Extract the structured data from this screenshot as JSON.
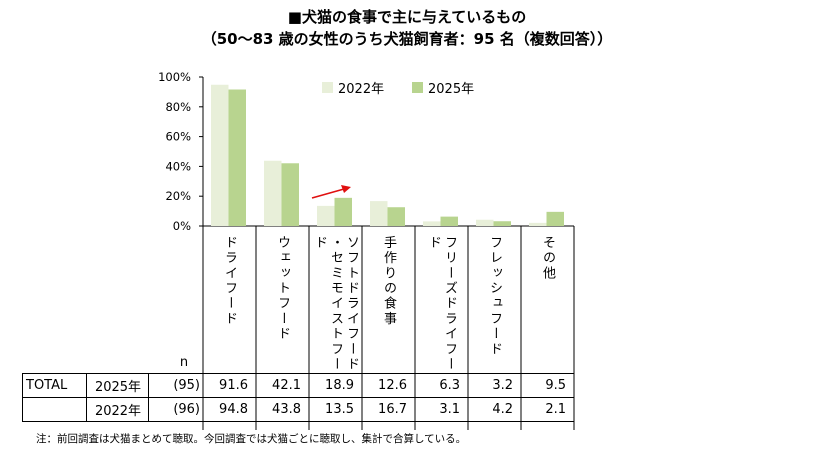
{
  "title": "■犬猫の食事で主に与えているもの",
  "subtitle": "（50～83 歳の女性のうち犬猫飼育者：95 名（複数回答））",
  "colors": {
    "y2022": "#e8efd9",
    "y2025": "#b8d48f",
    "arrow": "#e01010",
    "grid": "#000000"
  },
  "chart_data": {
    "type": "bar",
    "categories": [
      "ドライフード",
      "ウェットフード",
      "ソフトドライフード・セミモイストフード",
      "手作りの食事",
      "フリーズドライフード",
      "フレッシュフード",
      "その他"
    ],
    "series": [
      {
        "name": "2022年",
        "values": [
          94.8,
          43.8,
          13.5,
          16.7,
          3.1,
          4.2,
          2.1
        ]
      },
      {
        "name": "2025年",
        "values": [
          91.6,
          42.1,
          18.9,
          12.6,
          6.3,
          3.2,
          9.5
        ]
      }
    ],
    "ylim": [
      0,
      100
    ],
    "yticks": [
      "0%",
      "20%",
      "40%",
      "60%",
      "80%",
      "100%"
    ],
    "legend_position": "top-right",
    "annotation": "red arrow above ソフトドライフード・セミモイストフード"
  },
  "table": {
    "n_label": "n",
    "group_label": "TOTAL",
    "rows": [
      {
        "year": "2025年",
        "n": "(95)",
        "values": [
          "91.6",
          "42.1",
          "18.9",
          "12.6",
          "6.3",
          "3.2",
          "9.5"
        ]
      },
      {
        "year": "2022年",
        "n": "(96)",
        "values": [
          "94.8",
          "43.8",
          "13.5",
          "16.7",
          "3.1",
          "4.2",
          "2.1"
        ]
      }
    ]
  },
  "note": "注：前回調査は犬猫まとめて聴取。今回調査では犬猫ごとに聴取し、集計で合算している。"
}
